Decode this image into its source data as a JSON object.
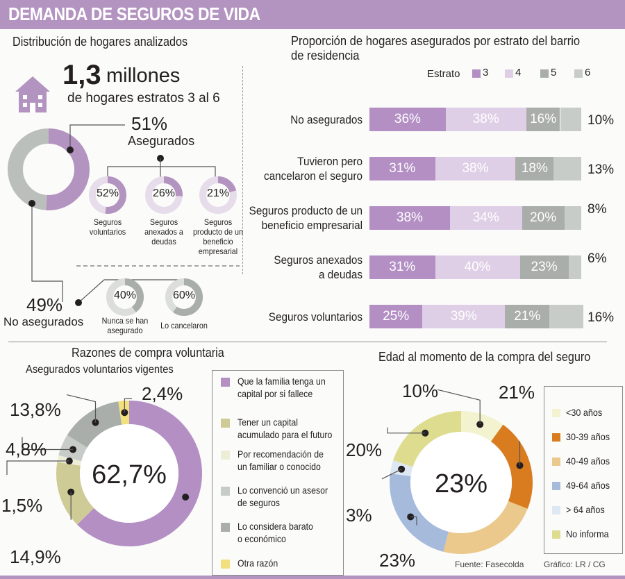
{
  "title": "DEMANDA DE SEGUROS DE VIDA",
  "colors": {
    "e3": "#b38fc4",
    "e4": "#dfcfe6",
    "e5": "#a9aeaa",
    "e6": "#c8ccc9",
    "accent": "#b394c1"
  },
  "dist": {
    "heading": "Distribución de hogares analizados",
    "big_num": "1,3",
    "big_unit": "millones",
    "sub": "de hogares estratos 3 al 6",
    "asegurados_pct": "51%",
    "asegurados_label": "Asegurados",
    "no_pct": "49%",
    "no_label": "No asegurados",
    "aseg_breakdown": [
      {
        "pct": "52%",
        "label": "Seguros voluntarios",
        "value": 52
      },
      {
        "pct": "26%",
        "label": "Seguros anexados a deudas",
        "value": 26
      },
      {
        "pct": "21%",
        "label": "Seguros producto de un beneficio empresarial",
        "value": 21
      }
    ],
    "no_breakdown": [
      {
        "pct": "40%",
        "label": "Nunca se han asegurado",
        "value": 40
      },
      {
        "pct": "60%",
        "label": "Lo cancelaron",
        "value": 60
      }
    ]
  },
  "chart_data": [
    {
      "type": "bar",
      "title": "Proporción de hogares asegurados por estrato del barrio de residencia",
      "legend_title": "Estrato",
      "series_names": [
        "3",
        "4",
        "5",
        "6"
      ],
      "categories": [
        "No asegurados",
        "Tuvieron pero cancelaron el seguro",
        "Seguros producto de un beneficio empresarial",
        "Seguros anexados a deudas",
        "Seguros voluntarios"
      ],
      "category_lines": [
        [
          "No asegurados"
        ],
        [
          "Tuvieron pero",
          "cancelaron el seguro"
        ],
        [
          "Seguros producto de un",
          "beneficio empresarial"
        ],
        [
          "Seguros anexados",
          "a deudas"
        ],
        [
          "Seguros voluntarios"
        ]
      ],
      "values": [
        [
          36,
          38,
          16,
          10
        ],
        [
          31,
          38,
          18,
          13
        ],
        [
          38,
          34,
          20,
          8
        ],
        [
          31,
          40,
          23,
          6
        ],
        [
          25,
          39,
          21,
          16
        ]
      ],
      "labels": [
        [
          "36%",
          "38%",
          "16%",
          "10%"
        ],
        [
          "31%",
          "38%",
          "18%",
          "13%"
        ],
        [
          "38%",
          "34%",
          "20%",
          "8%"
        ],
        [
          "31%",
          "40%",
          "23%",
          "6%"
        ],
        [
          "25%",
          "39%",
          "21%",
          "16%"
        ]
      ]
    },
    {
      "type": "pie",
      "title": "Razones de compra voluntaria",
      "subtitle": "Asegurados voluntarios vigentes",
      "center": "62,7%",
      "categories": [
        "Que la familia tenga un capital por si fallece",
        "Tener un capital acumulado para el futuro",
        "Por recomendación de un familiar o conocido",
        "Lo convenció un asesor de seguros",
        "Lo considera barato o económico",
        "Otra razón"
      ],
      "legend_lines": [
        [
          "Que la familia tenga un",
          "capital por si fallece"
        ],
        [
          "Tener un capital",
          "acumulado para el futuro"
        ],
        [
          "Por recomendación de",
          "un familiar o conocido"
        ],
        [
          "Lo convenció un asesor",
          "de seguros"
        ],
        [
          "Lo considera barato",
          "o económico"
        ],
        [
          "Otra razón"
        ]
      ],
      "values": [
        62.7,
        14.9,
        1.5,
        4.8,
        13.8,
        2.4
      ],
      "labels": [
        "62,7%",
        "14,9%",
        "1,5%",
        "4,8%",
        "13,8%",
        "2,4%"
      ],
      "colors": [
        "#b38fc4",
        "#cfcb96",
        "#eeeed8",
        "#c8ccc9",
        "#a9aeaa",
        "#f2e07e"
      ]
    },
    {
      "type": "pie",
      "title": "Edad al momento de la compra del seguro",
      "center": "23%",
      "categories": [
        "<30 años",
        "30-39 años",
        "40-49 años",
        "49-64 años",
        "> 64 años",
        "No informa"
      ],
      "values": [
        10,
        21,
        23,
        23,
        3,
        20
      ],
      "labels": [
        "10%",
        "21%",
        "23%",
        "23%",
        "3%",
        "20%"
      ],
      "colors": [
        "#f3f3d0",
        "#d97c1f",
        "#ebc98c",
        "#a6bbdc",
        "#dde8f3",
        "#dedd8f"
      ]
    }
  ],
  "footer": {
    "fuente": "Fuente: Fasecolda",
    "grafico": "Gráfico: LR / CG"
  }
}
